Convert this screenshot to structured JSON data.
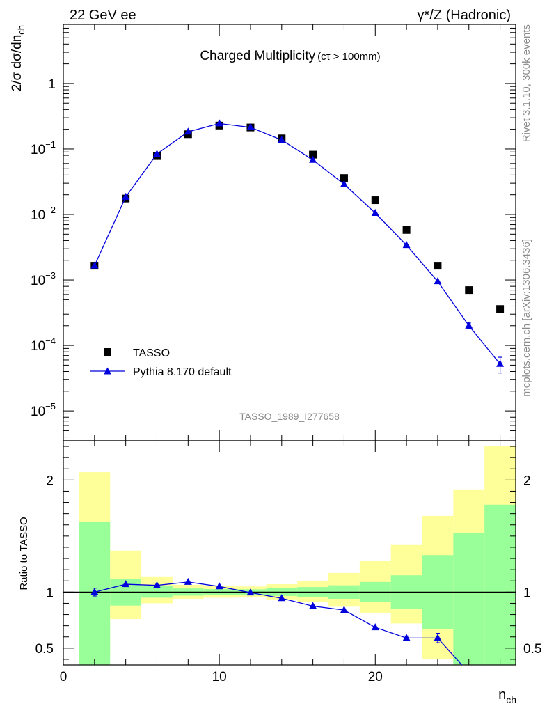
{
  "header": {
    "left": "22 GeV ee",
    "right": "γ*/Z (Hadronic)"
  },
  "side_text": {
    "rivet": "Rivet 3.1.10,  300k events",
    "source": "mcplots.cern.ch [arXiv:1306.3436]"
  },
  "analysis_id": "TASSO_1989_I277658",
  "chart_data": [
    {
      "type": "scatter",
      "panel": "main",
      "title": "Charged Multiplicity",
      "title_note": "(cτ > 100mm)",
      "ylabel": "2/σ dσ/dn",
      "ylabel_sub": "ch",
      "yscale": "log",
      "xlim": [
        0,
        29
      ],
      "ylim": [
        3.5e-06,
        8
      ],
      "x_ticks": [
        0,
        10,
        20
      ],
      "y_ticks": [
        {
          "value": 1,
          "label": "1"
        },
        {
          "value": 0.1,
          "base": "10",
          "exp": "−1"
        },
        {
          "value": 0.01,
          "base": "10",
          "exp": "−2"
        },
        {
          "value": 0.001,
          "base": "10",
          "exp": "−3"
        },
        {
          "value": 0.0001,
          "base": "10",
          "exp": "−4"
        },
        {
          "value": 1e-05,
          "base": "10",
          "exp": "−5"
        }
      ],
      "legend_position": "bottom-left",
      "series": [
        {
          "name": "TASSO",
          "marker": "square",
          "color": "#000000",
          "x": [
            2,
            4,
            6,
            8,
            10,
            12,
            14,
            16,
            18,
            20,
            22,
            24,
            26,
            28
          ],
          "y": [
            0.00165,
            0.0175,
            0.078,
            0.168,
            0.228,
            0.213,
            0.145,
            0.082,
            0.036,
            0.0165,
            0.0058,
            0.00165,
            0.0007,
            0.00036
          ]
        },
        {
          "name": "Pythia 8.170 default",
          "marker": "triangle",
          "color": "#0000dd",
          "x": [
            2,
            4,
            6,
            8,
            10,
            12,
            14,
            16,
            18,
            20,
            22,
            24,
            26,
            28
          ],
          "y": [
            0.00165,
            0.0185,
            0.084,
            0.183,
            0.245,
            0.214,
            0.137,
            0.068,
            0.029,
            0.0105,
            0.0034,
            0.00095,
            0.0002,
            5.2e-05
          ],
          "yerr": [
            0,
            0,
            0,
            0,
            0,
            0,
            0,
            0,
            0,
            0,
            0,
            0,
            2e-05,
            1.4e-05
          ]
        }
      ]
    },
    {
      "type": "line",
      "panel": "ratio",
      "ylabel": "Ratio to TASSO",
      "xlabel": "n",
      "xlabel_sub": "ch",
      "xlim": [
        0,
        29
      ],
      "ylim": [
        0.35,
        2.35
      ],
      "x_ticks": [
        0,
        10,
        20
      ],
      "y_ticks": [
        0.5,
        1,
        2
      ],
      "reference_line": 1,
      "bands": {
        "x_edges": [
          1,
          3,
          5,
          7,
          9,
          11,
          13,
          15,
          17,
          19,
          21,
          23,
          25,
          27,
          29
        ],
        "inner_color": "#99ff99",
        "outer_color": "#ffff99",
        "inner_low": [
          0.3,
          0.88,
          0.95,
          0.968,
          0.973,
          0.975,
          0.966,
          0.955,
          0.94,
          0.91,
          0.85,
          0.67,
          0.35,
          0.2
        ],
        "inner_high": [
          1.63,
          1.12,
          1.055,
          1.032,
          1.027,
          1.025,
          1.034,
          1.045,
          1.06,
          1.09,
          1.15,
          1.33,
          1.53,
          1.78
        ],
        "outer_low": [
          0.43,
          0.76,
          0.9,
          0.94,
          0.95,
          0.952,
          0.935,
          0.91,
          0.87,
          0.81,
          0.72,
          0.4,
          0.35,
          0.35
        ],
        "outer_high": [
          2.07,
          1.37,
          1.14,
          1.065,
          1.052,
          1.05,
          1.07,
          1.1,
          1.17,
          1.28,
          1.42,
          1.68,
          1.91,
          2.3
        ]
      },
      "series": [
        {
          "name": "Pythia 8.170 default",
          "color": "#0000dd",
          "x": [
            2,
            4,
            6,
            8,
            10,
            12,
            14,
            16,
            18,
            20,
            22,
            24,
            26
          ],
          "y": [
            1.0,
            1.07,
            1.06,
            1.09,
            1.05,
            0.995,
            0.945,
            0.875,
            0.84,
            0.685,
            0.59,
            0.59,
            0.28
          ],
          "yerr": [
            0.035,
            0,
            0,
            0,
            0,
            0,
            0,
            0,
            0,
            0,
            0.018,
            0.042,
            0
          ]
        }
      ]
    }
  ]
}
